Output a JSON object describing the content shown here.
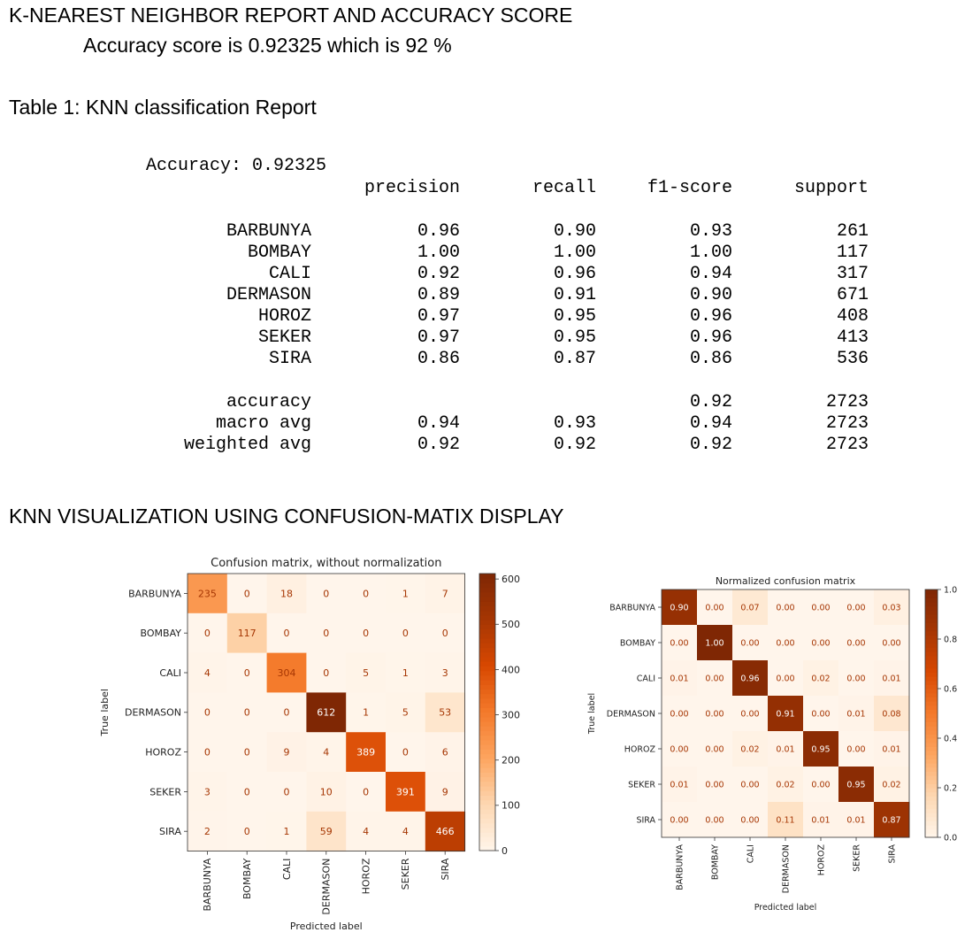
{
  "document": {
    "title": "K-NEAREST NEIGHBOR REPORT AND ACCURACY SCORE",
    "subtitle": "Accuracy score is 0.92325 which is 92 %",
    "table_caption": "Table 1: KNN classification Report",
    "viz_heading": "KNN VISUALIZATION USING CONFUSION-MATIX DISPLAY"
  },
  "report": {
    "accuracy_line": "Accuracy: 0.92325",
    "headers": [
      "precision",
      "recall",
      "f1-score",
      "support"
    ],
    "rows": [
      {
        "label": "BARBUNYA",
        "values": [
          "0.96",
          "0.90",
          "0.93",
          "261"
        ]
      },
      {
        "label": "BOMBAY",
        "values": [
          "1.00",
          "1.00",
          "1.00",
          "117"
        ]
      },
      {
        "label": "CALI",
        "values": [
          "0.92",
          "0.96",
          "0.94",
          "317"
        ]
      },
      {
        "label": "DERMASON",
        "values": [
          "0.89",
          "0.91",
          "0.90",
          "671"
        ]
      },
      {
        "label": "HOROZ",
        "values": [
          "0.97",
          "0.95",
          "0.96",
          "408"
        ]
      },
      {
        "label": "SEKER",
        "values": [
          "0.97",
          "0.95",
          "0.96",
          "413"
        ]
      },
      {
        "label": "SIRA",
        "values": [
          "0.86",
          "0.87",
          "0.86",
          "536"
        ]
      }
    ],
    "summary": [
      {
        "label": "accuracy",
        "values": [
          "",
          "",
          "0.92",
          "2723"
        ]
      },
      {
        "label": "macro avg",
        "values": [
          "0.94",
          "0.93",
          "0.94",
          "2723"
        ]
      },
      {
        "label": "weighted avg",
        "values": [
          "0.92",
          "0.92",
          "0.92",
          "2723"
        ]
      }
    ]
  },
  "chart_data": [
    {
      "type": "heatmap",
      "title": "Confusion matrix, without normalization",
      "xlabel": "Predicted label",
      "ylabel": "True label",
      "x_categories": [
        "BARBUNYA",
        "BOMBAY",
        "CALI",
        "DERMASON",
        "HOROZ",
        "SEKER",
        "SIRA"
      ],
      "y_categories": [
        "BARBUNYA",
        "BOMBAY",
        "CALI",
        "DERMASON",
        "HOROZ",
        "SEKER",
        "SIRA"
      ],
      "values": [
        [
          235,
          0,
          18,
          0,
          0,
          1,
          7
        ],
        [
          0,
          117,
          0,
          0,
          0,
          0,
          0
        ],
        [
          4,
          0,
          304,
          0,
          5,
          1,
          3
        ],
        [
          0,
          0,
          0,
          612,
          1,
          5,
          53
        ],
        [
          0,
          0,
          9,
          4,
          389,
          0,
          6
        ],
        [
          3,
          0,
          0,
          10,
          0,
          391,
          9
        ],
        [
          2,
          0,
          1,
          59,
          4,
          4,
          466
        ]
      ],
      "value_labels": [
        [
          "235",
          "0",
          "18",
          "0",
          "0",
          "1",
          "7"
        ],
        [
          "0",
          "117",
          "0",
          "0",
          "0",
          "0",
          "0"
        ],
        [
          "4",
          "0",
          "304",
          "0",
          "5",
          "1",
          "3"
        ],
        [
          "0",
          "0",
          "0",
          "612",
          "1",
          "5",
          "53"
        ],
        [
          "0",
          "0",
          "9",
          "4",
          "389",
          "0",
          "6"
        ],
        [
          "3",
          "0",
          "0",
          "10",
          "0",
          "391",
          "9"
        ],
        [
          "2",
          "0",
          "1",
          "59",
          "4",
          "4",
          "466"
        ]
      ],
      "colorbar": {
        "range": [
          0,
          612
        ],
        "ticks": [
          0,
          100,
          200,
          300,
          400,
          500,
          600
        ],
        "tick_labels": [
          "0",
          "100",
          "200",
          "300",
          "400",
          "500",
          "600"
        ]
      },
      "colormap": [
        "#fff5eb",
        "#fdd8b2",
        "#fda560",
        "#f47a2b",
        "#d84801",
        "#a63603",
        "#7f2704"
      ]
    },
    {
      "type": "heatmap",
      "title": "Normalized confusion matrix",
      "xlabel": "Predicted label",
      "ylabel": "True label",
      "x_categories": [
        "BARBUNYA",
        "BOMBAY",
        "CALI",
        "DERMASON",
        "HOROZ",
        "SEKER",
        "SIRA"
      ],
      "y_categories": [
        "BARBUNYA",
        "BOMBAY",
        "CALI",
        "DERMASON",
        "HOROZ",
        "SEKER",
        "SIRA"
      ],
      "values": [
        [
          0.9,
          0.0,
          0.07,
          0.0,
          0.0,
          0.0,
          0.03
        ],
        [
          0.0,
          1.0,
          0.0,
          0.0,
          0.0,
          0.0,
          0.0
        ],
        [
          0.01,
          0.0,
          0.96,
          0.0,
          0.02,
          0.0,
          0.01
        ],
        [
          0.0,
          0.0,
          0.0,
          0.91,
          0.0,
          0.01,
          0.08
        ],
        [
          0.0,
          0.0,
          0.02,
          0.01,
          0.95,
          0.0,
          0.01
        ],
        [
          0.01,
          0.0,
          0.0,
          0.02,
          0.0,
          0.95,
          0.02
        ],
        [
          0.0,
          0.0,
          0.0,
          0.11,
          0.01,
          0.01,
          0.87
        ]
      ],
      "value_labels": [
        [
          "0.90",
          "0.00",
          "0.07",
          "0.00",
          "0.00",
          "0.00",
          "0.03"
        ],
        [
          "0.00",
          "1.00",
          "0.00",
          "0.00",
          "0.00",
          "0.00",
          "0.00"
        ],
        [
          "0.01",
          "0.00",
          "0.96",
          "0.00",
          "0.02",
          "0.00",
          "0.01"
        ],
        [
          "0.00",
          "0.00",
          "0.00",
          "0.91",
          "0.00",
          "0.01",
          "0.08"
        ],
        [
          "0.00",
          "0.00",
          "0.02",
          "0.01",
          "0.95",
          "0.00",
          "0.01"
        ],
        [
          "0.01",
          "0.00",
          "0.00",
          "0.02",
          "0.00",
          "0.95",
          "0.02"
        ],
        [
          "0.00",
          "0.00",
          "0.00",
          "0.11",
          "0.01",
          "0.01",
          "0.87"
        ]
      ],
      "colorbar": {
        "range": [
          0,
          1
        ],
        "ticks": [
          0,
          0.2,
          0.4,
          0.6,
          0.8,
          1.0
        ],
        "tick_labels": [
          "0.0",
          "0.2",
          "0.4",
          "0.6",
          "0.8",
          "1.0"
        ]
      },
      "colormap": [
        "#fff5eb",
        "#fdd8b2",
        "#fda560",
        "#f47a2b",
        "#d84801",
        "#a63603",
        "#7f2704"
      ]
    }
  ]
}
